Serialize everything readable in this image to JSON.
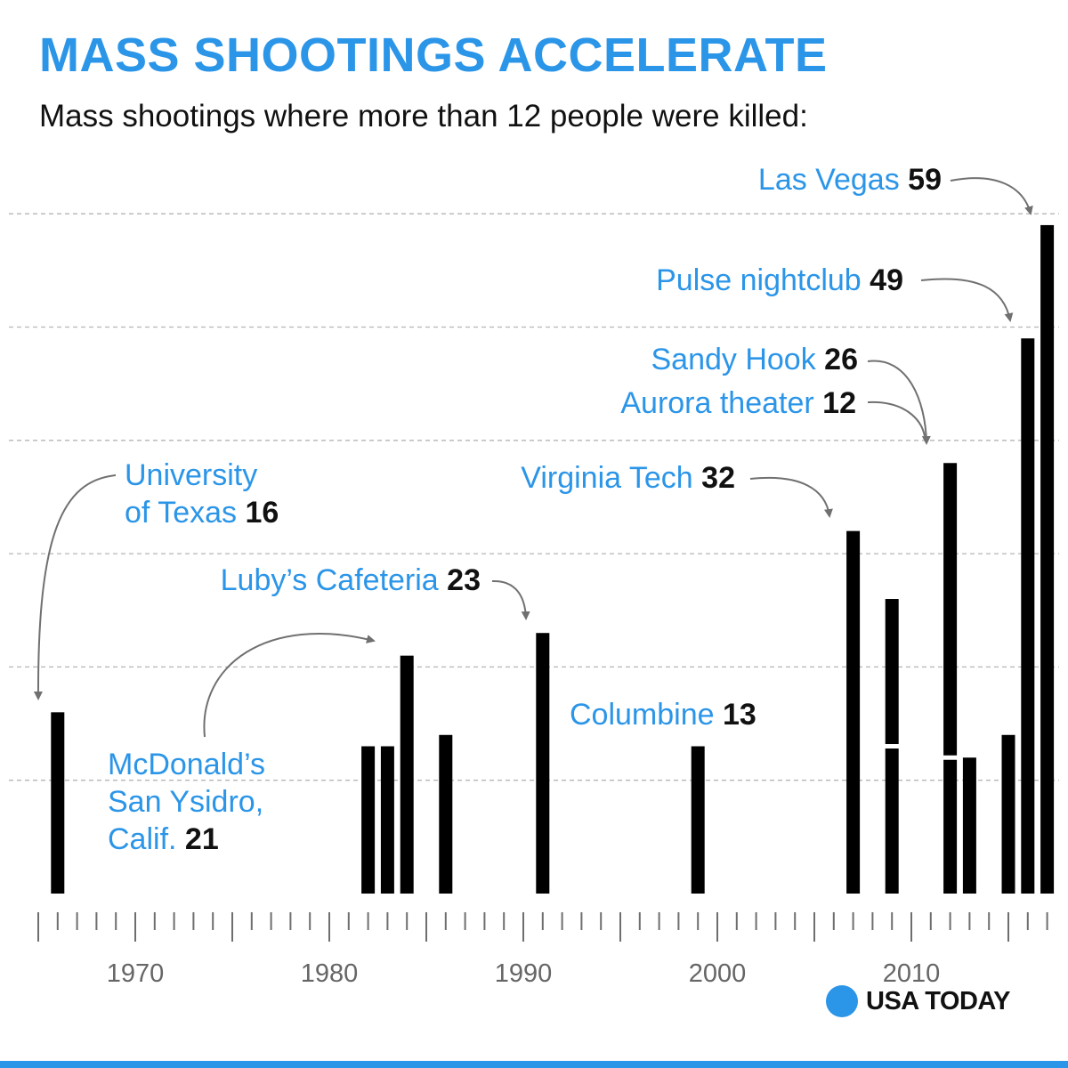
{
  "title": "MASS SHOOTINGS ACCELERATE",
  "subtitle": "Mass shootings where more than 12 people were killed:",
  "colors": {
    "accent": "#2b95e8",
    "bar": "#000000",
    "text": "#111111",
    "grid": "#b5b5b5"
  },
  "brand": {
    "name": "USA TODAY",
    "logo_icon": "blue-circle-icon"
  },
  "annotations": {
    "las_vegas": {
      "event": "Las Vegas",
      "deaths": "59"
    },
    "pulse": {
      "event": "Pulse nightclub",
      "deaths": "49"
    },
    "sandy_hook": {
      "event": "Sandy Hook",
      "deaths": "26"
    },
    "aurora": {
      "event": "Aurora theater",
      "deaths": "12"
    },
    "virginia_tech": {
      "event": "Virginia Tech",
      "deaths": "32"
    },
    "ut": {
      "event_line1": "University",
      "event_line2": "of Texas",
      "deaths": "16"
    },
    "lubys": {
      "event": "Luby’s Cafeteria",
      "deaths": "23"
    },
    "columbine": {
      "event": "Columbine",
      "deaths": "13"
    },
    "mcdonalds": {
      "event_line1": "McDonald’s",
      "event_line2": "San Ysidro,",
      "event_line3": "Calif.",
      "deaths": "21"
    }
  },
  "chart_data": {
    "type": "bar",
    "title": "MASS SHOOTINGS ACCELERATE",
    "subtitle": "Mass shootings where more than 12 people were killed:",
    "xlabel": "",
    "ylabel": "",
    "xlim": [
      1965,
      2018
    ],
    "ylim": [
      0,
      60
    ],
    "grid": true,
    "gridlines": [
      10,
      20,
      30,
      40,
      50,
      60
    ],
    "x_ticks": [
      1970,
      1980,
      1990,
      2000,
      2010
    ],
    "stacked": true,
    "data": [
      {
        "year": 1966,
        "segments": [
          16
        ],
        "label": "University of Texas"
      },
      {
        "year": 1982,
        "segments": [
          13
        ]
      },
      {
        "year": 1983,
        "segments": [
          13
        ]
      },
      {
        "year": 1984,
        "segments": [
          21
        ],
        "label": "McDonald’s San Ysidro, Calif."
      },
      {
        "year": 1986,
        "segments": [
          14
        ]
      },
      {
        "year": 1991,
        "segments": [
          23
        ],
        "label": "Luby’s Cafeteria"
      },
      {
        "year": 1999,
        "segments": [
          13
        ],
        "label": "Columbine"
      },
      {
        "year": 2007,
        "segments": [
          32
        ],
        "label": "Virginia Tech"
      },
      {
        "year": 2009,
        "segments": [
          13,
          13
        ]
      },
      {
        "year": 2012,
        "segments": [
          12,
          26
        ],
        "label": "Aurora theater / Sandy Hook"
      },
      {
        "year": 2013,
        "segments": [
          12
        ]
      },
      {
        "year": 2015,
        "segments": [
          14
        ]
      },
      {
        "year": 2016,
        "segments": [
          49
        ],
        "label": "Pulse nightclub"
      },
      {
        "year": 2017,
        "segments": [
          59
        ],
        "label": "Las Vegas"
      }
    ]
  }
}
